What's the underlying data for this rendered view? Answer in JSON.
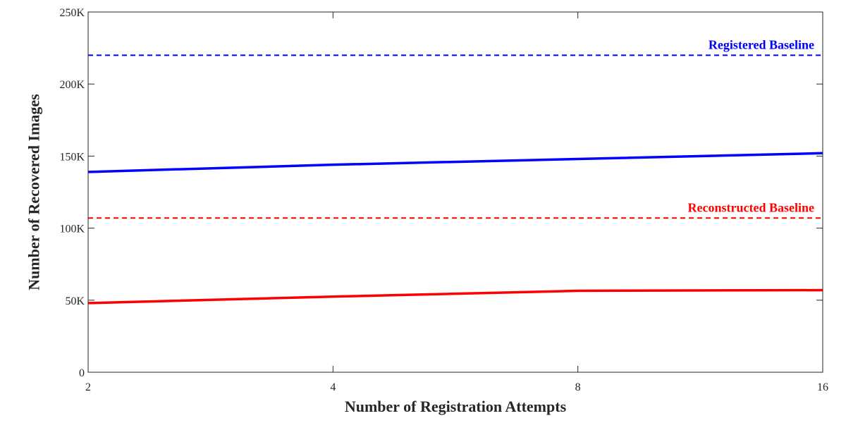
{
  "chart_data": {
    "type": "line",
    "title": "",
    "xlabel": "Number of Registration Attempts",
    "ylabel": "Number of Recovered Images",
    "x_scale": "log2",
    "x": [
      2,
      4,
      8,
      16
    ],
    "x_ticks": [
      2,
      4,
      8,
      16
    ],
    "x_tick_labels": [
      "2",
      "4",
      "8",
      "16"
    ],
    "xlim": [
      2,
      16
    ],
    "ylim": [
      0,
      250000
    ],
    "y_ticks": [
      0,
      50000,
      100000,
      150000,
      200000,
      250000
    ],
    "y_tick_labels": [
      "0",
      "50K",
      "100K",
      "150K",
      "200K",
      "250K"
    ],
    "grid": false,
    "series": [
      {
        "name": "",
        "color": "#0000ff",
        "style": "solid",
        "values": [
          139000,
          144000,
          148000,
          152000
        ]
      },
      {
        "name": "",
        "color": "#ff0000",
        "style": "solid",
        "values": [
          48000,
          52500,
          56500,
          57000
        ]
      }
    ],
    "baselines": [
      {
        "label": "Registered Baseline",
        "value": 220000,
        "color": "#0000ff",
        "style": "dashed"
      },
      {
        "label": "Reconstructed Baseline",
        "value": 107000,
        "color": "#ff0000",
        "style": "dashed"
      }
    ]
  }
}
